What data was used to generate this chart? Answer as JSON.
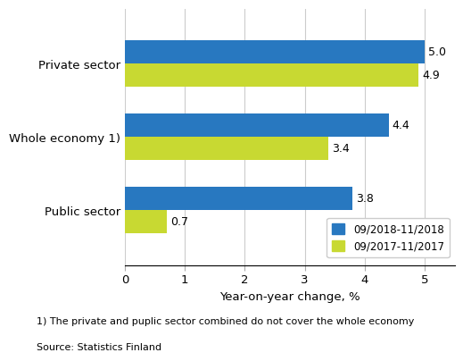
{
  "categories": [
    "Public sector",
    "Whole economy 1)",
    "Private sector"
  ],
  "series": [
    {
      "label": "09/2018-11/2018",
      "color": "#2878c0",
      "values": [
        3.8,
        4.4,
        5.0
      ]
    },
    {
      "label": "09/2017-11/2017",
      "color": "#c8d932",
      "values": [
        0.7,
        3.4,
        4.9
      ]
    }
  ],
  "xlabel": "Year-on-year change, %",
  "xlim": [
    0,
    5.5
  ],
  "xticks": [
    0,
    1,
    2,
    3,
    4,
    5
  ],
  "footnote1": "1) The private and puplic sector combined do not cover the whole economy",
  "footnote2": "Source: Statistics Finland",
  "bar_height": 0.32,
  "background_color": "#ffffff",
  "grid_color": "#cccccc",
  "label_fontsize": 9,
  "tick_fontsize": 9.5
}
